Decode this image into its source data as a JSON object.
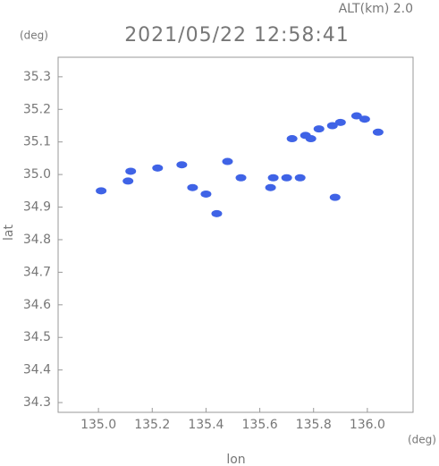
{
  "chart_data": {
    "type": "scatter",
    "header": "ALT(km) 2.0",
    "title": "2021/05/22 12:58:41",
    "y_unit": "(deg)",
    "x_unit": "(deg)",
    "xlabel": "lon",
    "ylabel": "lat",
    "xlim": [
      134.85,
      136.17
    ],
    "ylim": [
      34.27,
      35.36
    ],
    "xticks": [
      {
        "value": 135,
        "label": "135.0"
      },
      135.2,
      135.4,
      135.6,
      135.8,
      {
        "value": 136,
        "label": "136.0"
      }
    ],
    "yticks": [
      34.3,
      34.4,
      34.5,
      34.6,
      34.7,
      34.8,
      34.9,
      {
        "value": 35,
        "label": "35.0"
      },
      35.1,
      35.2,
      35.3
    ],
    "color": "#3f63e6",
    "x": [
      135.72,
      135.77,
      135.82,
      135.87,
      135.9,
      135.79,
      135.96,
      135.99,
      136.04,
      135.01,
      135.12,
      135.11,
      135.22,
      135.31,
      135.35,
      135.4,
      135.44,
      135.48,
      135.53,
      135.64,
      135.65,
      135.7,
      135.75,
      135.88
    ],
    "y": [
      35.11,
      35.12,
      35.14,
      35.15,
      35.16,
      35.11,
      35.18,
      35.17,
      35.13,
      34.95,
      35.01,
      34.98,
      35.02,
      35.03,
      34.96,
      34.94,
      34.88,
      35.04,
      34.99,
      34.96,
      34.99,
      34.99,
      34.99,
      34.93
    ]
  }
}
